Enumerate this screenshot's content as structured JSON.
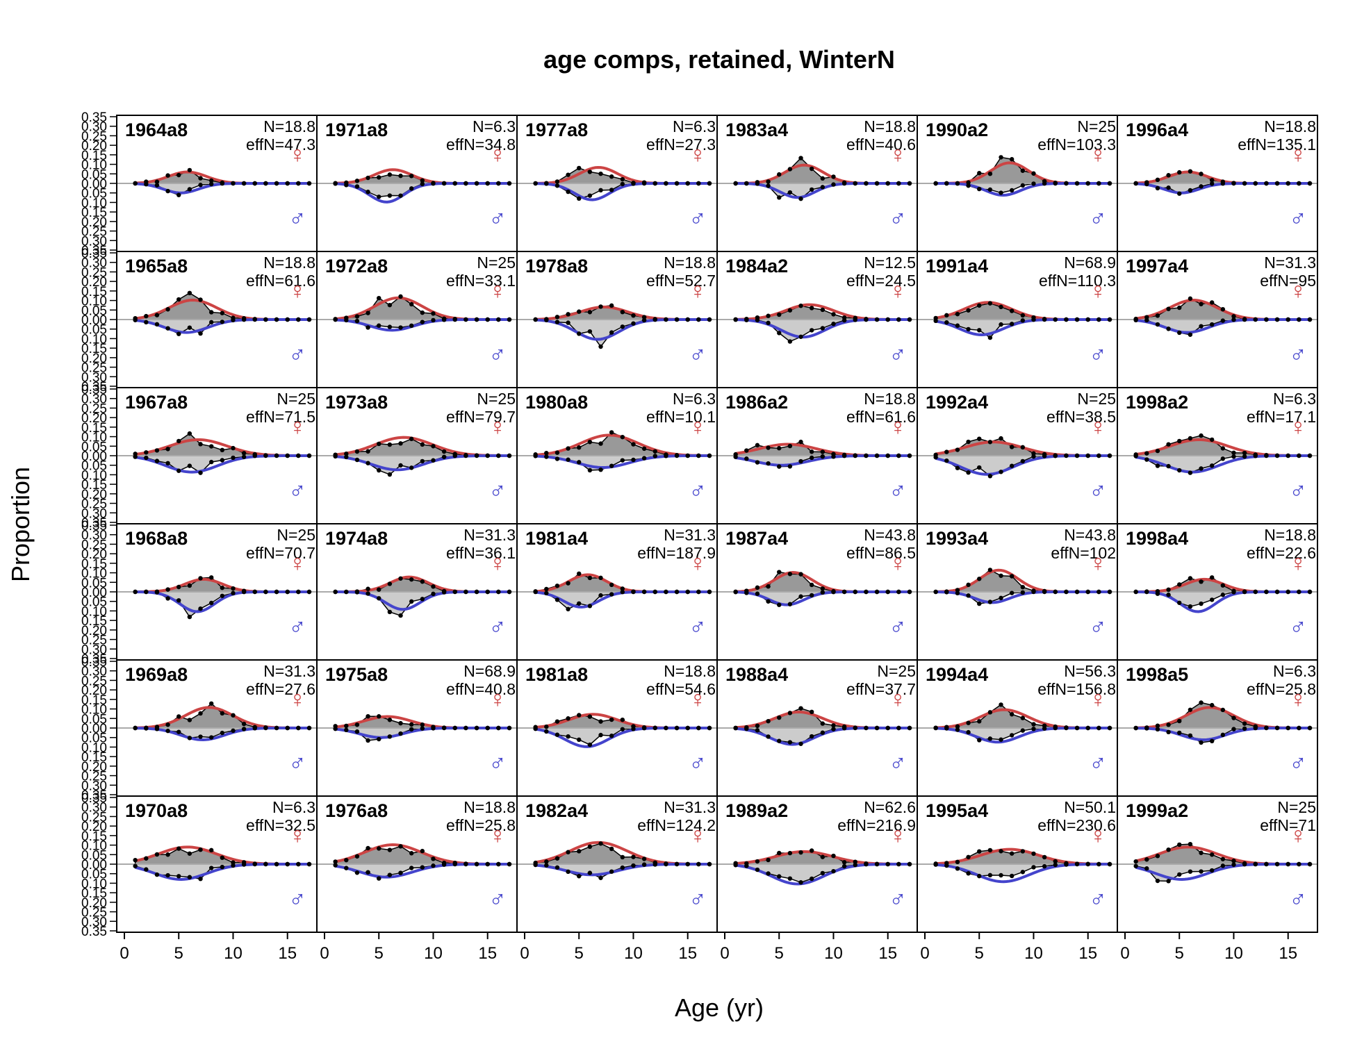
{
  "chart_data": {
    "type": "line",
    "title": "age comps, retained, WinterN",
    "xlabel": "Age (yr)",
    "ylabel": "Proportion",
    "xlim": [
      0,
      17
    ],
    "ylim": [
      -0.35,
      0.35
    ],
    "x_ticks": [
      "0",
      "5",
      "10",
      "15"
    ],
    "y_ticks": [
      "0.35",
      "0.30",
      "0.25",
      "0.20",
      "0.15",
      "0.10",
      "0.05",
      "0.00",
      "0.05",
      "0.10",
      "0.15",
      "0.20",
      "0.25",
      "0.30",
      "0.35"
    ],
    "grid": false,
    "layout": "6 columns x 6 rows, filled by column",
    "series_colors": {
      "female_expected": "#cc4444",
      "male_expected": "#4444cc",
      "obs_female_fill": "#999999",
      "obs_male_fill": "#cccccc"
    },
    "female_symbol": "♀",
    "male_symbol": "♂",
    "panels": [
      {
        "label": "1964a8",
        "n": "N=18.8",
        "effn": "effN=47.3"
      },
      {
        "label": "1965a8",
        "n": "N=18.8",
        "effn": "effN=61.6"
      },
      {
        "label": "1967a8",
        "n": "N=25",
        "effn": "effN=71.5"
      },
      {
        "label": "1968a8",
        "n": "N=25",
        "effn": "effN=70.7"
      },
      {
        "label": "1969a8",
        "n": "N=31.3",
        "effn": "effN=27.6"
      },
      {
        "label": "1970a8",
        "n": "N=6.3",
        "effn": "effN=32.5"
      },
      {
        "label": "1971a8",
        "n": "N=6.3",
        "effn": "effN=34.8"
      },
      {
        "label": "1972a8",
        "n": "N=25",
        "effn": "effN=33.1"
      },
      {
        "label": "1973a8",
        "n": "N=25",
        "effn": "effN=79.7"
      },
      {
        "label": "1974a8",
        "n": "N=31.3",
        "effn": "effN=36.1"
      },
      {
        "label": "1975a8",
        "n": "N=68.9",
        "effn": "effN=40.8"
      },
      {
        "label": "1976a8",
        "n": "N=18.8",
        "effn": "effN=25.8"
      },
      {
        "label": "1977a8",
        "n": "N=6.3",
        "effn": "effN=27.3"
      },
      {
        "label": "1978a8",
        "n": "N=18.8",
        "effn": "effN=52.7"
      },
      {
        "label": "1980a8",
        "n": "N=6.3",
        "effn": "effN=10.1"
      },
      {
        "label": "1981a4",
        "n": "N=31.3",
        "effn": "effN=187.9"
      },
      {
        "label": "1981a8",
        "n": "N=18.8",
        "effn": "effN=54.6"
      },
      {
        "label": "1982a4",
        "n": "N=31.3",
        "effn": "effN=124.2"
      },
      {
        "label": "1983a4",
        "n": "N=18.8",
        "effn": "effN=40.6"
      },
      {
        "label": "1984a2",
        "n": "N=12.5",
        "effn": "effN=24.5"
      },
      {
        "label": "1986a2",
        "n": "N=18.8",
        "effn": "effN=61.6"
      },
      {
        "label": "1987a4",
        "n": "N=43.8",
        "effn": "effN=86.5"
      },
      {
        "label": "1988a4",
        "n": "N=25",
        "effn": "effN=37.7"
      },
      {
        "label": "1989a2",
        "n": "N=62.6",
        "effn": "effN=216.9"
      },
      {
        "label": "1990a2",
        "n": "N=25",
        "effn": "effN=103.3"
      },
      {
        "label": "1991a4",
        "n": "N=68.9",
        "effn": "effN=110.3"
      },
      {
        "label": "1992a4",
        "n": "N=25",
        "effn": "effN=38.5"
      },
      {
        "label": "1993a4",
        "n": "N=43.8",
        "effn": "effN=102"
      },
      {
        "label": "1994a4",
        "n": "N=56.3",
        "effn": "effN=156.8"
      },
      {
        "label": "1995a4",
        "n": "N=50.1",
        "effn": "effN=230.6"
      },
      {
        "label": "1996a4",
        "n": "N=18.8",
        "effn": "effN=135.1"
      },
      {
        "label": "1997a4",
        "n": "N=31.3",
        "effn": "effN=95"
      },
      {
        "label": "1998a2",
        "n": "N=6.3",
        "effn": "effN=17.1"
      },
      {
        "label": "1998a4",
        "n": "N=18.8",
        "effn": "effN=22.6"
      },
      {
        "label": "1998a5",
        "n": "N=6.3",
        "effn": "effN=25.8"
      },
      {
        "label": "1999a2",
        "n": "N=25",
        "effn": "effN=71"
      }
    ]
  }
}
